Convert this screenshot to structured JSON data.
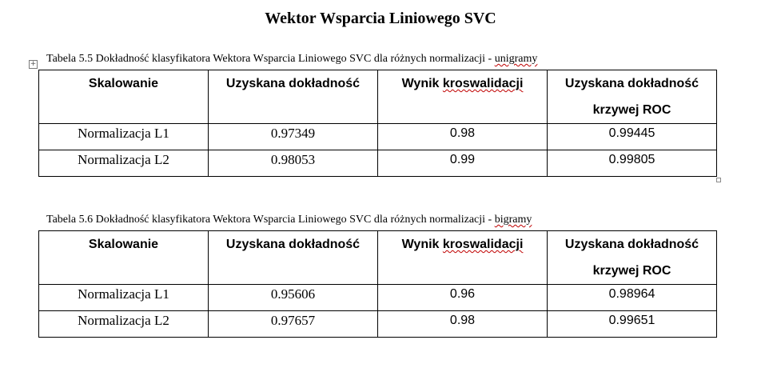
{
  "title": "Wektor Wsparcia  Liniowego SVC",
  "tables": [
    {
      "caption_prefix": "Tabela 5.5 Dokładność klasyfikatora Wektora Wsparcia Liniowego SVC dla różnych normalizacji - ",
      "caption_suffix": "unigramy",
      "headers": {
        "col1": "Skalowanie",
        "col2": "Uzyskana dokładność",
        "col3_a": "Wynik ",
        "col3_b": "kroswalidacji",
        "col4_line1": "Uzyskana dokładność",
        "col4_line2": "krzywej ROC"
      },
      "rows": [
        [
          "Normalizacja L1",
          "0.97349",
          "0.98",
          "0.99445"
        ],
        [
          "Normalizacja L2",
          "0.98053",
          "0.99",
          "0.99805"
        ]
      ]
    },
    {
      "caption_prefix": "Tabela 5.6 Dokładność klasyfikatora Wektora Wsparcia Liniowego SVC dla różnych normalizacji - ",
      "caption_suffix": "bigramy",
      "headers": {
        "col1": "Skalowanie",
        "col2": "Uzyskana dokładność",
        "col3_a": "Wynik ",
        "col3_b": "kroswalidacji",
        "col4_line1": "Uzyskana dokładność",
        "col4_line2": "krzywej ROC"
      },
      "rows": [
        [
          "Normalizacja L1",
          "0.95606",
          "0.96",
          "0.98964"
        ],
        [
          "Normalizacja L2",
          "0.97657",
          "0.98",
          "0.99651"
        ]
      ]
    }
  ],
  "icons": {
    "table_anchor": "move-handle-icon",
    "table_resize": "resize-handle-icon"
  },
  "colors": {
    "spellcheck_underline": "#c00000"
  }
}
